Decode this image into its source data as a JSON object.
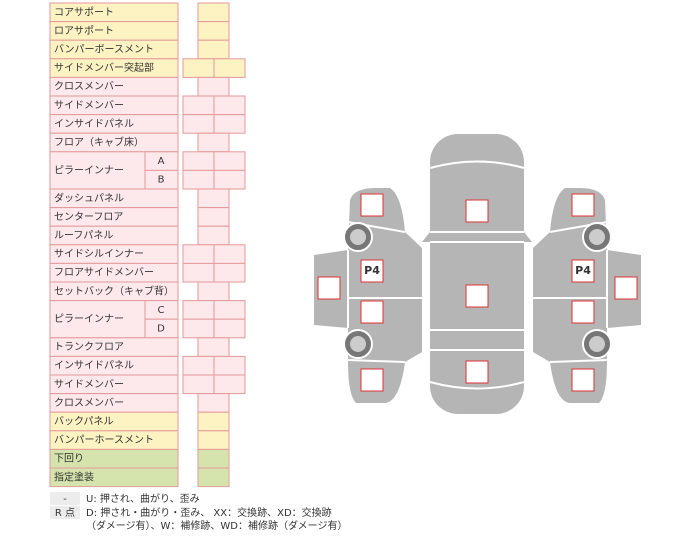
{
  "parts": [
    {
      "label": "コアサポート"
    },
    {
      "label": "ロアサポート"
    },
    {
      "label": "バンパーボースメント"
    },
    {
      "label": "サイドメンバー突起部"
    },
    {
      "label": "クロスメンバー"
    },
    {
      "label": "サイドメンバー"
    },
    {
      "label": "インサイドパネル"
    },
    {
      "label": "フロア（キャブ床）"
    },
    {
      "label": "ピラーインナー",
      "subs": [
        "A",
        "B"
      ]
    },
    {
      "label": "ダッシュパネル"
    },
    {
      "label": "センターフロア"
    },
    {
      "label": "ルーフパネル"
    },
    {
      "label": "サイドシルインナー"
    },
    {
      "label": "フロアサイドメンバー"
    },
    {
      "label": "セットバック（キャブ背）"
    },
    {
      "label": "ピラーインナー",
      "subs": [
        "C",
        "D"
      ]
    },
    {
      "label": "トランクフロア"
    },
    {
      "label": "インサイドパネル"
    },
    {
      "label": "サイドメンバー"
    },
    {
      "label": "クロスメンバー"
    },
    {
      "label": "バックパネル"
    },
    {
      "label": "バンパーホースメント"
    },
    {
      "label": "下回り"
    },
    {
      "label": "指定塗装"
    }
  ],
  "legend": [
    {
      "key": "-",
      "lines": [
        "U: 押され、曲がり、歪み"
      ]
    },
    {
      "key": "R 点",
      "lines": [
        "D: 押され・曲がり・歪み、 XX：交換跡、XD：交換跡",
        "（ダメージ有）、W：補修跡、WD：補修跡（ダメージ有）"
      ]
    }
  ],
  "diagram": {
    "left_label": "P4",
    "right_label": "P4"
  }
}
